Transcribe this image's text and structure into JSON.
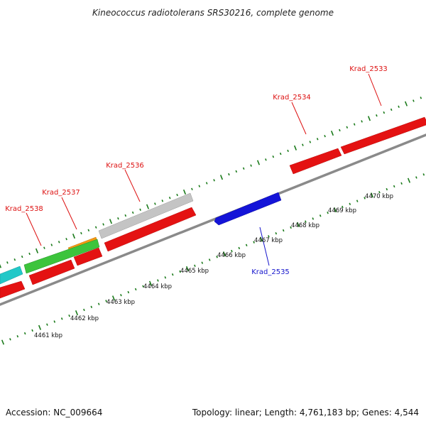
{
  "title": "Kineococcus radiotolerans SRS30216, complete genome",
  "footer": {
    "accession": "Accession: NC_009664",
    "info": "Topology: linear; Length: 4,761,183 bp; Genes: 4,544"
  },
  "colors": {
    "backbone": "#888888",
    "tick": "#1a7a1a",
    "gene_red": "#e41212",
    "gene_grey": "#c4c4c4",
    "gene_green": "#3cc43c",
    "gene_cyan": "#22c8c8",
    "gene_orange": "#f39a14",
    "gene_blue": "#1414d8",
    "label_red": "#dd1111",
    "label_blue": "#1414cc"
  },
  "kbp_labels": [
    "4461 kbp",
    "4462 kbp",
    "4463 kbp",
    "4464 kbp",
    "4465 kbp",
    "4466 kbp",
    "4467 kbp",
    "4468 kbp",
    "4469 kbp",
    "4470 kbp"
  ],
  "gene_labels": [
    {
      "id": "Krad_2533",
      "text": "Krad_2533",
      "strand": "plus"
    },
    {
      "id": "Krad_2534",
      "text": "Krad_2534",
      "strand": "plus"
    },
    {
      "id": "Krad_2535",
      "text": "Krad_2535",
      "strand": "minus"
    },
    {
      "id": "Krad_2536",
      "text": "Krad_2536",
      "strand": "plus"
    },
    {
      "id": "Krad_2537",
      "text": "Krad_2537",
      "strand": "plus"
    },
    {
      "id": "Krad_2538",
      "text": "Krad_2538",
      "strand": "plus"
    }
  ]
}
